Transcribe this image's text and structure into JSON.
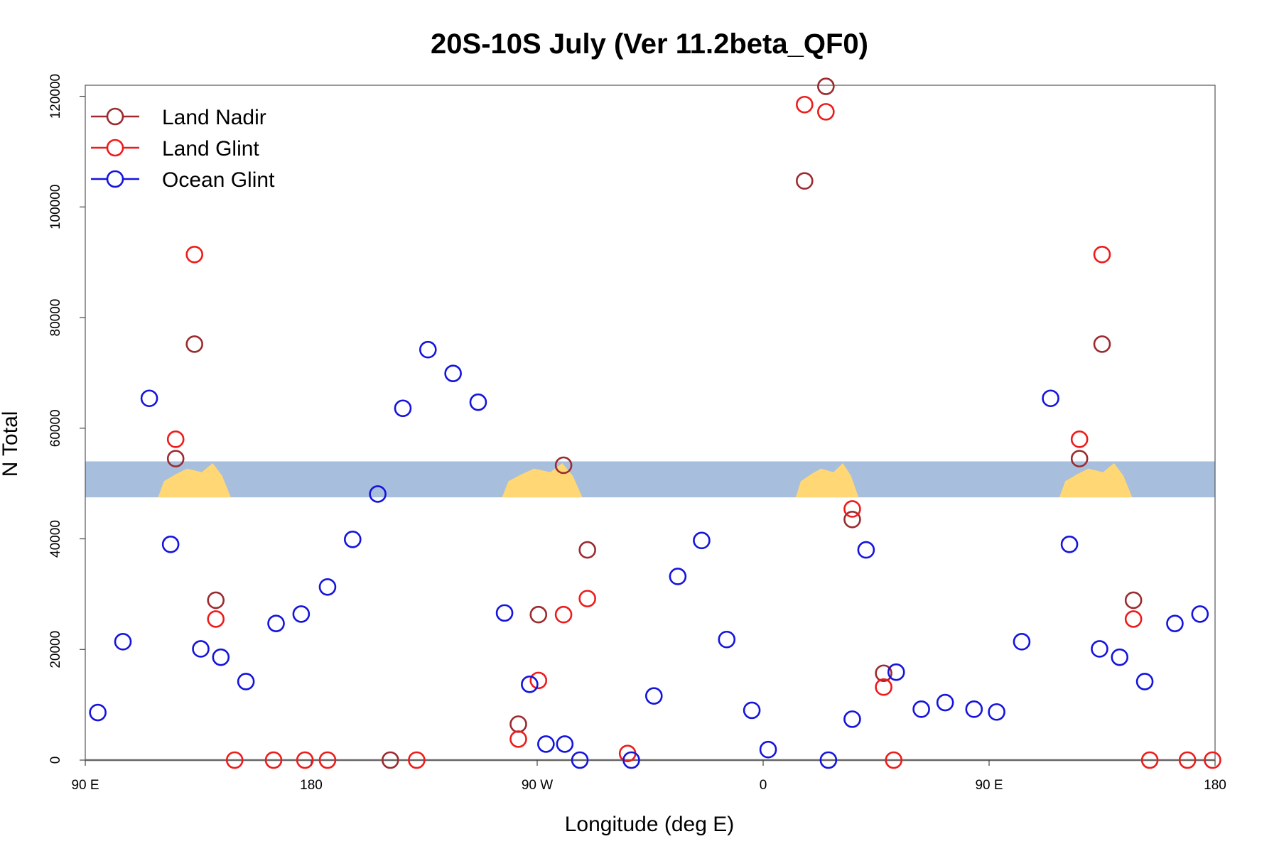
{
  "chart_data": {
    "type": "scatter",
    "title": "20S-10S July (Ver 11.2beta_QF0)",
    "xlabel": "Longitude (deg E)",
    "ylabel": "N Total",
    "xlim": [
      90,
      540
    ],
    "ylim": [
      0,
      122000
    ],
    "x_ticks": [
      {
        "value": 90,
        "label": "90 E"
      },
      {
        "value": 180,
        "label": "180"
      },
      {
        "value": 270,
        "label": "90 W"
      },
      {
        "value": 360,
        "label": "0"
      },
      {
        "value": 450,
        "label": "90 E"
      },
      {
        "value": 540,
        "label": "180"
      }
    ],
    "y_ticks": [
      {
        "value": 0,
        "label": "0"
      },
      {
        "value": 20000,
        "label": "20000"
      },
      {
        "value": 40000,
        "label": "40000"
      },
      {
        "value": 60000,
        "label": "60000"
      },
      {
        "value": 80000,
        "label": "80000"
      },
      {
        "value": 100000,
        "label": "100000"
      },
      {
        "value": 120000,
        "label": "120000"
      }
    ],
    "legend_position": "top-left",
    "map_strip": {
      "y_range": [
        47500,
        54000
      ],
      "ocean_color": "#a7bedd",
      "land_color": "#ffd875"
    },
    "series": [
      {
        "name": "Land Nadir",
        "color": "#9b2b2f",
        "points": [
          [
            126,
            54500
          ],
          [
            133.5,
            75200
          ],
          [
            142,
            28900
          ],
          [
            211.5,
            0
          ],
          [
            262.5,
            6500
          ],
          [
            270.5,
            26300
          ],
          [
            280.5,
            53300
          ],
          [
            290,
            38000
          ],
          [
            376.5,
            104700
          ],
          [
            385,
            121800
          ],
          [
            395.5,
            43500
          ],
          [
            408,
            15700
          ],
          [
            486,
            54500
          ],
          [
            495,
            75200
          ],
          [
            507.5,
            28900
          ]
        ]
      },
      {
        "name": "Land Glint",
        "color": "#ee1b1b",
        "points": [
          [
            126,
            58000
          ],
          [
            133.5,
            91400
          ],
          [
            142,
            25500
          ],
          [
            149.5,
            0
          ],
          [
            165,
            0
          ],
          [
            177.5,
            0
          ],
          [
            186.5,
            0
          ],
          [
            222,
            0
          ],
          [
            262.5,
            3800
          ],
          [
            270.5,
            14400
          ],
          [
            280.5,
            26300
          ],
          [
            290,
            29200
          ],
          [
            306,
            1200
          ],
          [
            376.5,
            118500
          ],
          [
            385,
            117200
          ],
          [
            395.5,
            45400
          ],
          [
            408,
            13200
          ],
          [
            412,
            0
          ],
          [
            486,
            58000
          ],
          [
            495,
            91400
          ],
          [
            507.5,
            25500
          ],
          [
            514,
            0
          ],
          [
            529,
            0
          ],
          [
            539,
            0
          ]
        ]
      },
      {
        "name": "Ocean Glint",
        "color": "#1414dd",
        "points": [
          [
            95,
            8600
          ],
          [
            105,
            21400
          ],
          [
            115.5,
            65400
          ],
          [
            124,
            39000
          ],
          [
            136,
            20100
          ],
          [
            144,
            18600
          ],
          [
            154,
            14200
          ],
          [
            166,
            24700
          ],
          [
            176,
            26400
          ],
          [
            186.5,
            31300
          ],
          [
            196.5,
            39900
          ],
          [
            206.5,
            48100
          ],
          [
            216.5,
            63600
          ],
          [
            226.5,
            74200
          ],
          [
            236.5,
            69900
          ],
          [
            246.5,
            64700
          ],
          [
            257,
            26600
          ],
          [
            267,
            13700
          ],
          [
            273.5,
            2900
          ],
          [
            281,
            2900
          ],
          [
            287,
            0
          ],
          [
            307.5,
            0
          ],
          [
            316.5,
            11600
          ],
          [
            326,
            33200
          ],
          [
            335.5,
            39700
          ],
          [
            345.5,
            21800
          ],
          [
            355.5,
            9000
          ],
          [
            362,
            1900
          ],
          [
            386,
            0
          ],
          [
            395.5,
            7400
          ],
          [
            401,
            38000
          ],
          [
            413,
            15900
          ],
          [
            423,
            9200
          ],
          [
            432.5,
            10400
          ],
          [
            444,
            9200
          ],
          [
            453,
            8700
          ],
          [
            463,
            21400
          ],
          [
            474.5,
            65400
          ],
          [
            482,
            39000
          ],
          [
            494,
            20100
          ],
          [
            502,
            18600
          ],
          [
            512,
            14200
          ],
          [
            524,
            24700
          ],
          [
            534,
            26400
          ]
        ]
      }
    ]
  }
}
